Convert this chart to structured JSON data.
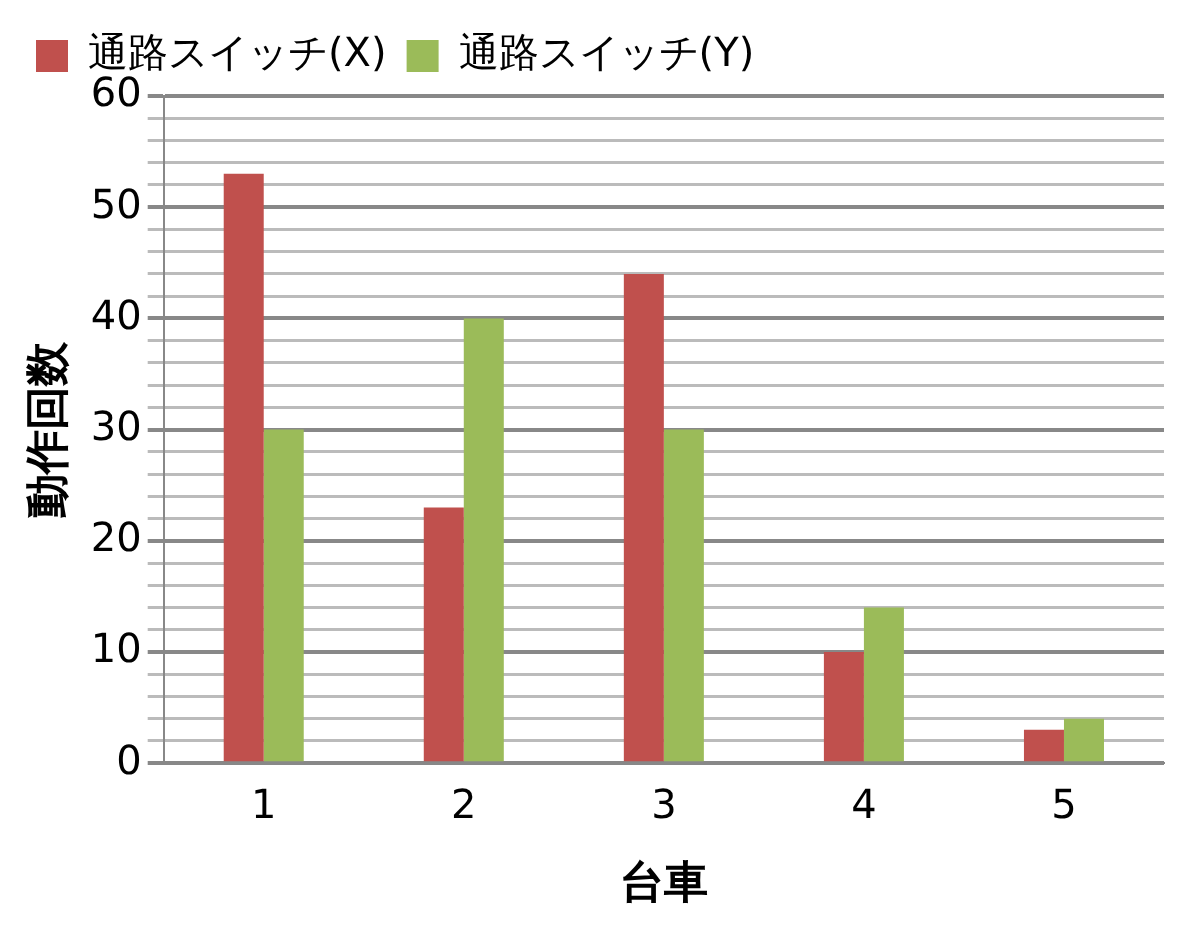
{
  "chart_data": {
    "type": "bar",
    "xlabel": "台車",
    "ylabel": "動作回数",
    "categories": [
      "1",
      "2",
      "3",
      "4",
      "5"
    ],
    "series": [
      {
        "name": "通路スイッチ(X)",
        "color": "#c0504d",
        "values": [
          53,
          23,
          44,
          10,
          3
        ]
      },
      {
        "name": "通路スイッチ(Y)",
        "color": "#9bbb59",
        "values": [
          30,
          40,
          30,
          14,
          4
        ]
      }
    ],
    "ylim": [
      0,
      60
    ],
    "yticks": [
      0,
      {
        "value": 2,
        "label": null
      },
      {
        "value": 4,
        "label": null
      },
      {
        "value": 6,
        "label": null
      },
      {
        "value": 8,
        "label": null
      },
      10,
      {
        "value": 12,
        "label": null
      },
      {
        "value": 14,
        "label": null
      },
      {
        "value": 16,
        "label": null
      },
      {
        "value": 18,
        "label": null
      },
      20,
      {
        "value": 22,
        "label": null
      },
      {
        "value": 24,
        "label": null
      },
      {
        "value": 26,
        "label": null
      },
      {
        "value": 28,
        "label": null
      },
      30,
      {
        "value": 32,
        "label": null
      },
      {
        "value": 34,
        "label": null
      },
      {
        "value": 36,
        "label": null
      },
      {
        "value": 38,
        "label": null
      },
      40,
      {
        "value": 42,
        "label": null
      },
      {
        "value": 44,
        "label": null
      },
      {
        "value": 46,
        "label": null
      },
      {
        "value": 48,
        "label": null
      },
      50,
      {
        "value": 52,
        "label": null
      },
      {
        "value": 54,
        "label": null
      },
      {
        "value": 56,
        "label": null
      },
      {
        "value": 58,
        "label": null
      },
      60
    ],
    "grid": "y",
    "legend": "top left"
  }
}
